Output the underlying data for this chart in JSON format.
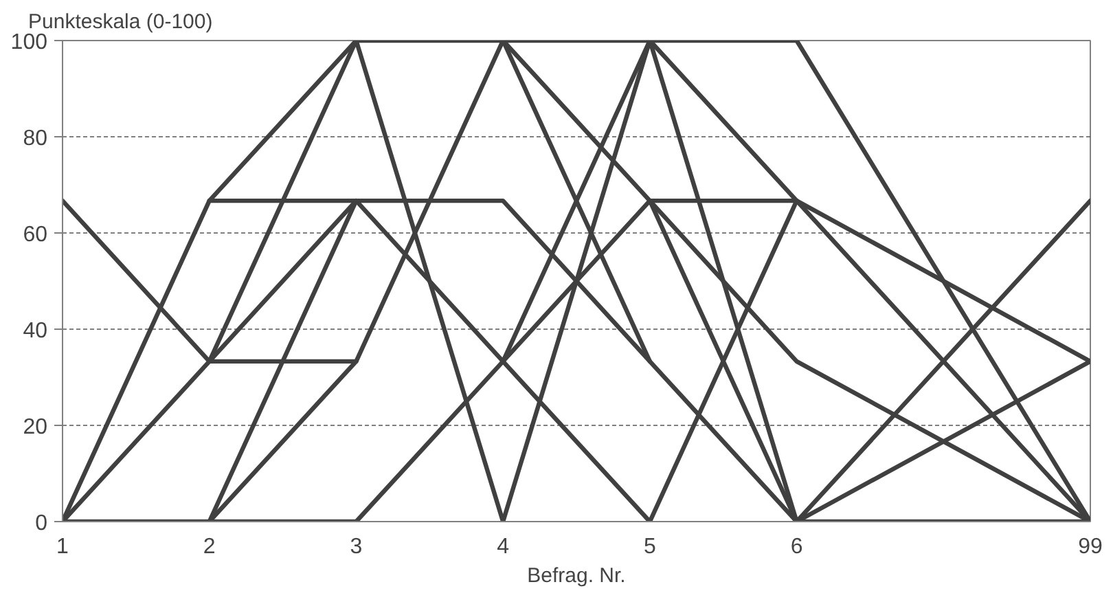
{
  "chart_data": {
    "type": "line",
    "ylabel": "Punkteskala (0-100)",
    "xlabel": "Befrag. Nr.",
    "categories": [
      "1",
      "2",
      "3",
      "4",
      "5",
      "6",
      null,
      "99"
    ],
    "ylim": [
      0,
      100
    ],
    "yticks": [
      0,
      20,
      40,
      60,
      80,
      100
    ],
    "grid": "y",
    "marker": "none",
    "line_style": "solid",
    "series": [
      {
        "color": "#404040",
        "values": [
          66.7,
          33.3,
          33.3,
          100,
          100,
          100,
          null,
          0
        ]
      },
      {
        "color": "#404040",
        "values": [
          0,
          66.7,
          100,
          100,
          66.7,
          66.7,
          null,
          33.3
        ]
      },
      {
        "color": "#404040",
        "values": [
          0,
          33.3,
          100,
          0,
          100,
          66.7,
          null,
          0
        ]
      },
      {
        "color": "#404040",
        "values": [
          0,
          0,
          66.7,
          66.7,
          33.3,
          0,
          null,
          66.7
        ]
      },
      {
        "color": "#404040",
        "values": [
          null,
          66.7,
          66.7,
          33.3,
          100,
          0,
          null,
          33.3
        ]
      },
      {
        "color": "#404040",
        "values": [
          null,
          0,
          0,
          33.3,
          66.7,
          33.3,
          null,
          0
        ]
      },
      {
        "color": "#404040",
        "values": [
          null,
          33.3,
          66.7,
          null,
          null,
          null,
          null,
          null
        ]
      },
      {
        "color": "#404040",
        "values": [
          null,
          0,
          33.3,
          null,
          null,
          null,
          null,
          null
        ]
      },
      {
        "color": "#404040",
        "values": [
          null,
          null,
          null,
          100,
          33.3,
          null,
          null,
          null
        ]
      },
      {
        "color": "#404040",
        "values": [
          null,
          null,
          null,
          33.3,
          0,
          66.7,
          null,
          null
        ]
      },
      {
        "color": "#404040",
        "values": [
          null,
          null,
          null,
          null,
          66.7,
          0,
          null,
          0
        ]
      }
    ]
  }
}
